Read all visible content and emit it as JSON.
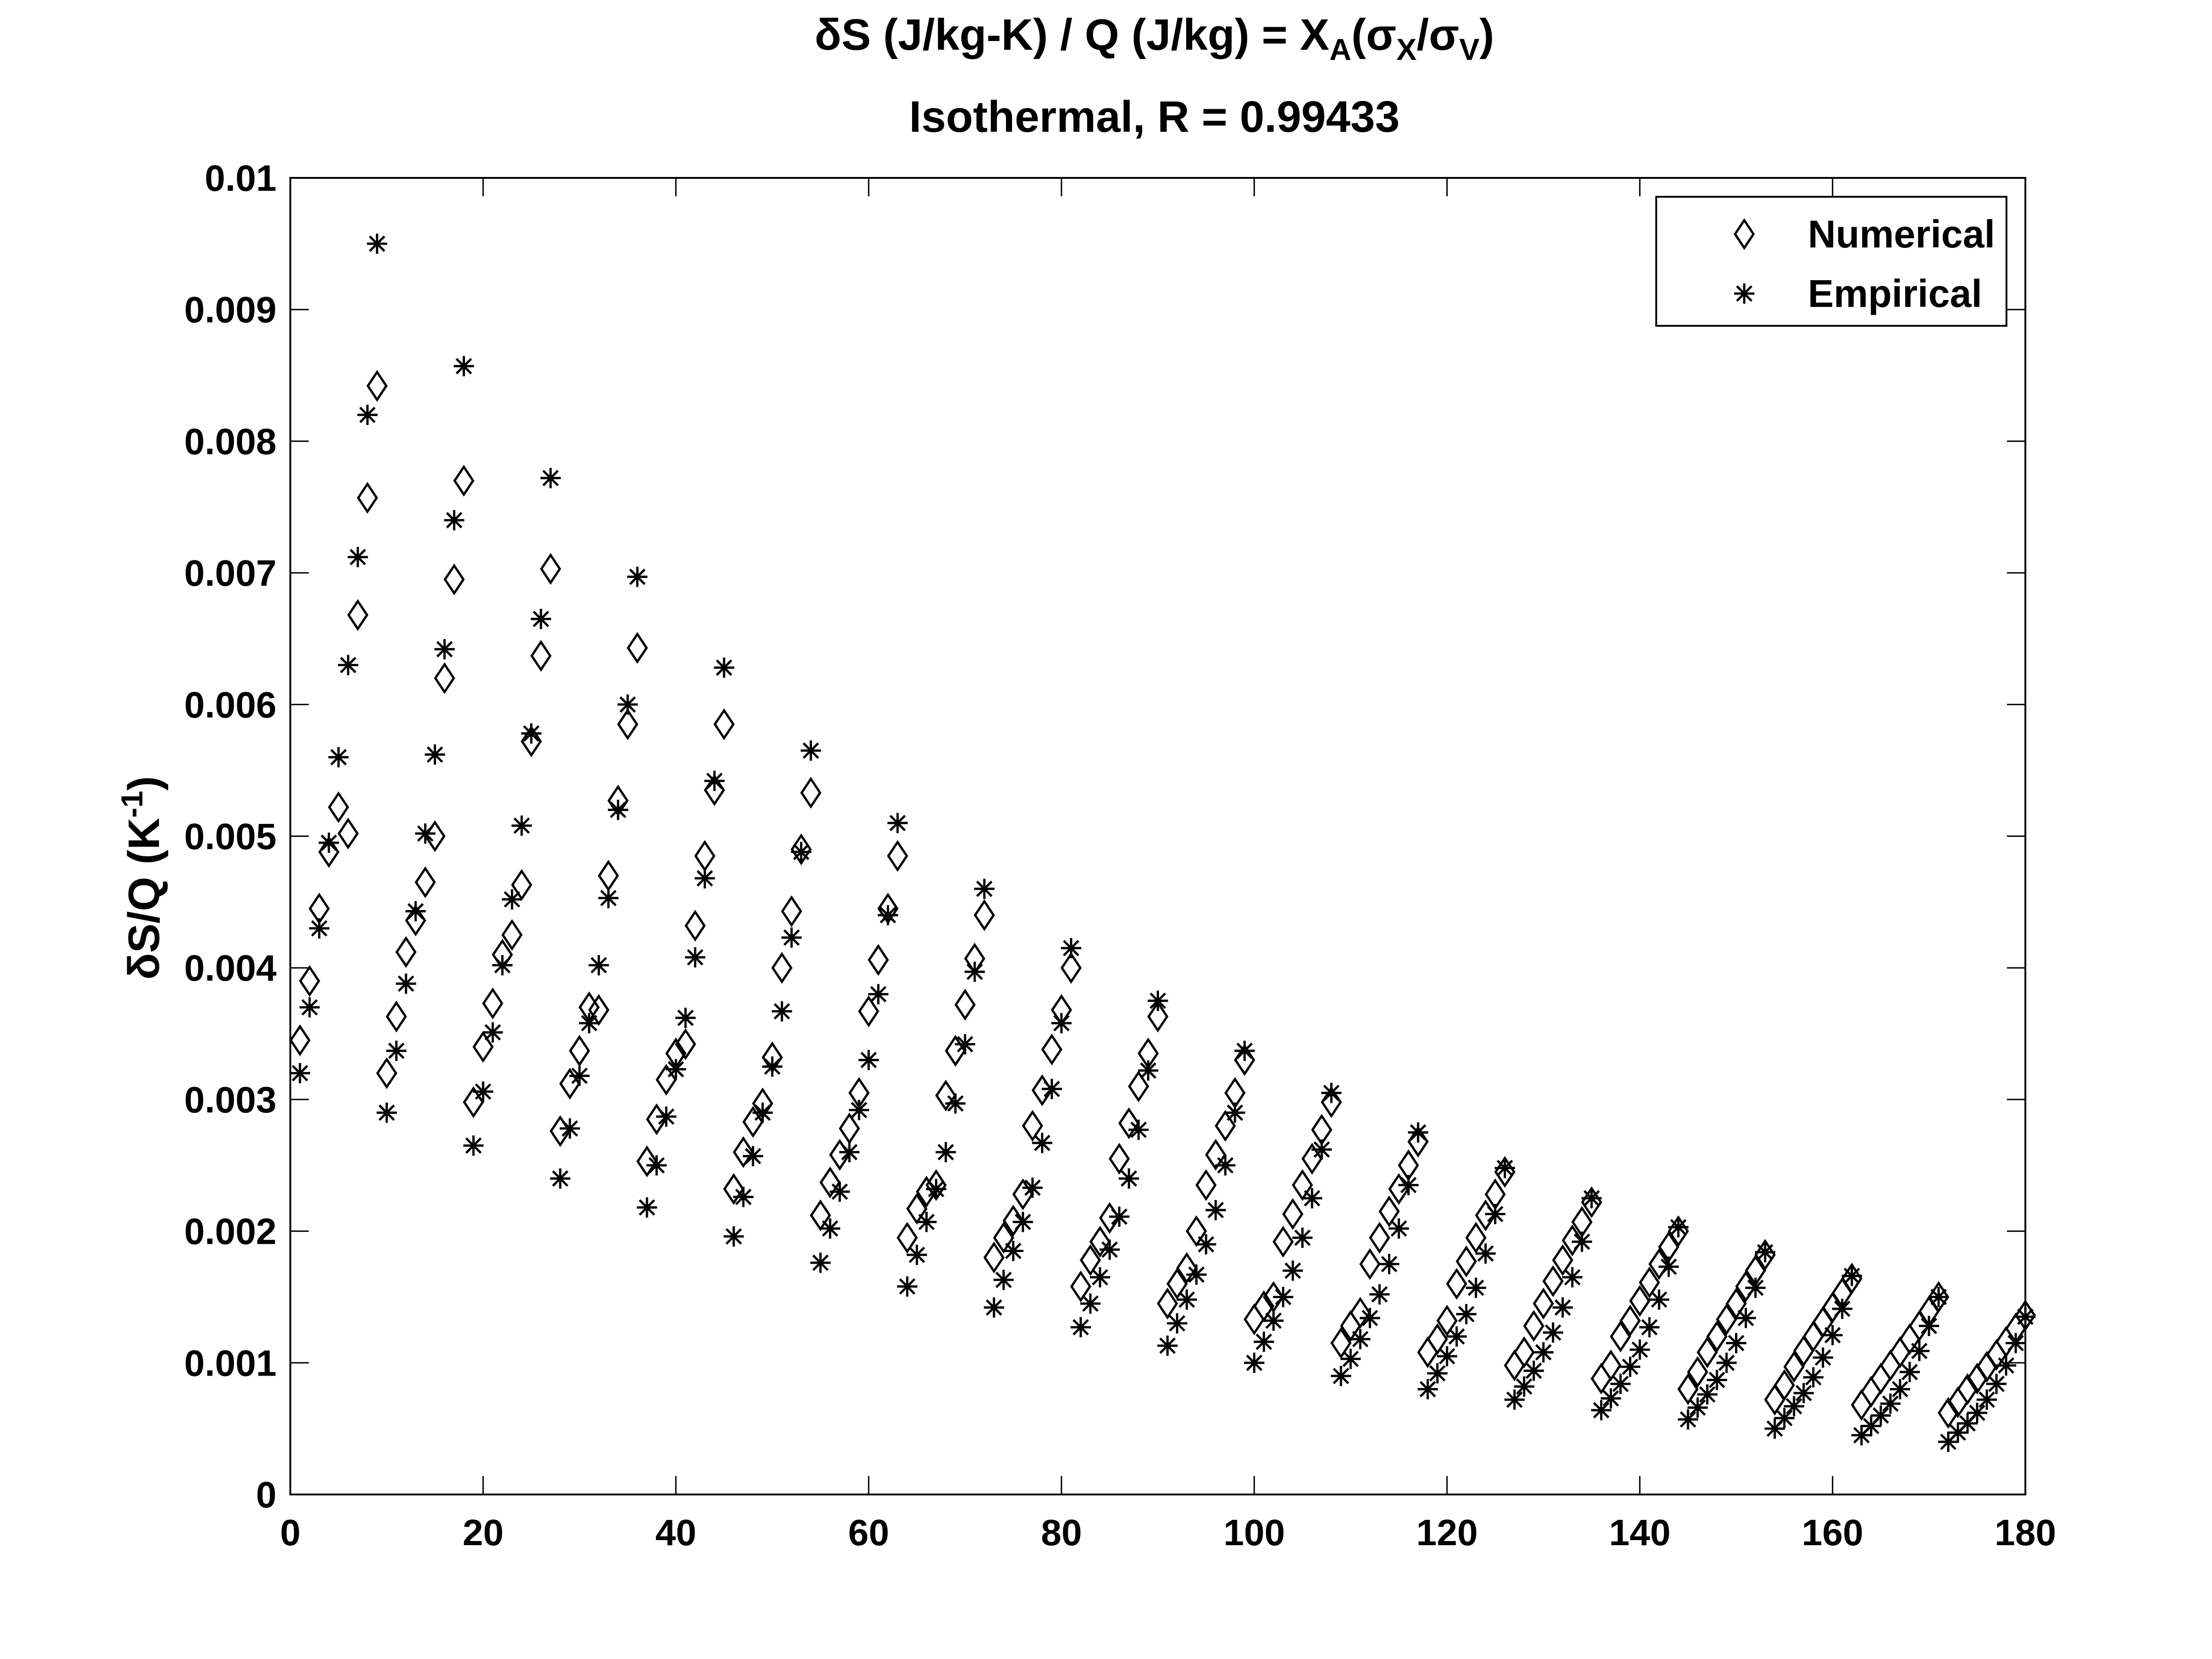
{
  "chart_data": {
    "type": "scatter",
    "title_line1": {
      "prefix": "δS (J/kg-K) / Q (J/kg) = X",
      "sub_a": "A",
      "open": "(σ",
      "sub_x": "X",
      "slash": "/σ",
      "sub_v": "V",
      "close": ")"
    },
    "title_line2": "Isothermal, R = 0.99433",
    "ylabel": {
      "main": "δS/Q (K",
      "sup": "-1",
      "close": ")"
    },
    "xlabel": "",
    "xlim": [
      0,
      180
    ],
    "ylim": [
      0,
      0.01
    ],
    "xticks": [
      0,
      20,
      40,
      60,
      80,
      100,
      120,
      140,
      160,
      180
    ],
    "yticks": [
      0,
      0.001,
      0.002,
      0.003,
      0.004,
      0.005,
      0.006,
      0.007,
      0.008,
      0.009,
      0.01
    ],
    "ytick_labels": [
      "0",
      "0.001",
      "0.002",
      "0.003",
      "0.004",
      "0.005",
      "0.006",
      "0.007",
      "0.008",
      "0.009",
      "0.01"
    ],
    "xtick_labels": [
      "0",
      "20",
      "40",
      "60",
      "80",
      "100",
      "120",
      "140",
      "160",
      "180"
    ],
    "legend_position": "top-right",
    "grid": false,
    "series": [
      {
        "name": "Numerical",
        "marker": "diamond",
        "groups": [
          {
            "x": [
              1,
              2,
              3,
              4,
              5,
              6,
              7,
              8,
              9
            ],
            "y": [
              0.00345,
              0.0039,
              0.00445,
              0.00488,
              0.00522,
              0.00502,
              0.00668,
              0.00757,
              0.00842
            ]
          },
          {
            "x": [
              10,
              11,
              12,
              13,
              14,
              15,
              16,
              17,
              18
            ],
            "y": [
              0.0032,
              0.00363,
              0.00412,
              0.00436,
              0.00465,
              0.005,
              0.0062,
              0.00695,
              0.0077
            ]
          },
          {
            "x": [
              19,
              20,
              21,
              22,
              23,
              24,
              25,
              26,
              27
            ],
            "y": [
              0.00298,
              0.0034,
              0.00373,
              0.0041,
              0.00425,
              0.00463,
              0.00572,
              0.00637,
              0.00703
            ]
          },
          {
            "x": [
              28,
              29,
              30,
              31,
              32,
              33,
              34,
              35,
              36
            ],
            "y": [
              0.00276,
              0.00312,
              0.00337,
              0.0037,
              0.00368,
              0.0047,
              0.00527,
              0.00585,
              0.00643
            ]
          },
          {
            "x": [
              37,
              38,
              39,
              40,
              41,
              42,
              43,
              44,
              45
            ],
            "y": [
              0.00253,
              0.00285,
              0.00315,
              0.00335,
              0.00342,
              0.00432,
              0.00485,
              0.00535,
              0.00585
            ]
          },
          {
            "x": [
              46,
              47,
              48,
              49,
              50,
              51,
              52,
              53,
              54
            ],
            "y": [
              0.00232,
              0.0026,
              0.00283,
              0.00297,
              0.00332,
              0.004,
              0.00443,
              0.0049,
              0.00533
            ]
          },
          {
            "x": [
              55,
              56,
              57,
              58,
              59,
              60,
              61,
              62,
              63
            ],
            "y": [
              0.00212,
              0.00237,
              0.00258,
              0.00278,
              0.00305,
              0.00367,
              0.00406,
              0.00445,
              0.00485
            ]
          },
          {
            "x": [
              64,
              65,
              66,
              67,
              68,
              69,
              70,
              71,
              72
            ],
            "y": [
              0.00195,
              0.00217,
              0.0023,
              0.00235,
              0.00303,
              0.00337,
              0.00372,
              0.00407,
              0.0044
            ]
          },
          {
            "x": [
              73,
              74,
              75,
              76,
              77,
              78,
              79,
              80,
              81
            ],
            "y": [
              0.0018,
              0.00195,
              0.00208,
              0.00228,
              0.0028,
              0.00307,
              0.00338,
              0.00368,
              0.004
            ]
          },
          {
            "x": [
              82,
              83,
              84,
              85,
              86,
              87,
              88,
              89,
              90
            ],
            "y": [
              0.00158,
              0.00178,
              0.00192,
              0.0021,
              0.00255,
              0.00282,
              0.0031,
              0.00335,
              0.00363
            ]
          },
          {
            "x": [
              91,
              92,
              93,
              94,
              95,
              96,
              97,
              98,
              99
            ],
            "y": [
              0.00145,
              0.0016,
              0.00172,
              0.002,
              0.00235,
              0.00258,
              0.0028,
              0.00305,
              0.0033
            ]
          },
          {
            "x": [
              100,
              101,
              102,
              103,
              104,
              105,
              106,
              107,
              108
            ],
            "y": [
              0.00133,
              0.00143,
              0.0015,
              0.00192,
              0.00213,
              0.00235,
              0.00255,
              0.00277,
              0.00298
            ]
          },
          {
            "x": [
              109,
              110,
              111,
              112,
              113,
              114,
              115,
              116,
              117
            ],
            "y": [
              0.00115,
              0.00128,
              0.00138,
              0.00175,
              0.00195,
              0.00215,
              0.00232,
              0.0025,
              0.00268
            ]
          },
          {
            "x": [
              118,
              119,
              120,
              121,
              122,
              123,
              124,
              125,
              126
            ],
            "y": [
              0.00108,
              0.00118,
              0.00132,
              0.0016,
              0.00177,
              0.00195,
              0.00212,
              0.00228,
              0.00245
            ]
          },
          {
            "x": [
              127,
              128,
              129,
              130,
              131,
              132,
              133,
              134,
              135
            ],
            "y": [
              0.00098,
              0.00108,
              0.00128,
              0.00145,
              0.00162,
              0.00178,
              0.00193,
              0.00207,
              0.00222
            ]
          },
          {
            "x": [
              136,
              137,
              138,
              139,
              140,
              141,
              142,
              143,
              144
            ],
            "y": [
              0.00088,
              0.00098,
              0.0012,
              0.00132,
              0.00147,
              0.00161,
              0.00175,
              0.00188,
              0.002
            ]
          },
          {
            "x": [
              145,
              146,
              147,
              148,
              149,
              150,
              151,
              152,
              153
            ],
            "y": [
              0.0008,
              0.00093,
              0.00108,
              0.0012,
              0.00133,
              0.00145,
              0.00158,
              0.0017,
              0.00182
            ]
          },
          {
            "x": [
              154,
              155,
              156,
              157,
              158,
              159,
              160,
              161,
              162
            ],
            "y": [
              0.00072,
              0.00083,
              0.00097,
              0.00109,
              0.0012,
              0.00131,
              0.00142,
              0.00153,
              0.00164
            ]
          },
          {
            "x": [
              163,
              164,
              165,
              166,
              167,
              168,
              169,
              170,
              171
            ],
            "y": [
              0.00068,
              0.00078,
              0.00088,
              0.00098,
              0.00108,
              0.00118,
              0.00128,
              0.00139,
              0.0015
            ]
          },
          {
            "x": [
              172,
              173,
              174,
              175,
              176,
              177,
              178,
              179,
              180
            ],
            "y": [
              0.00062,
              0.0007,
              0.0008,
              0.00088,
              0.00097,
              0.00106,
              0.00116,
              0.00126,
              0.00136
            ]
          }
        ]
      },
      {
        "name": "Empirical",
        "marker": "asterisk",
        "groups": [
          {
            "x": [
              1,
              2,
              3,
              4,
              5,
              6,
              7,
              8,
              9
            ],
            "y": [
              0.0032,
              0.0037,
              0.0043,
              0.00495,
              0.0056,
              0.0063,
              0.00712,
              0.0082,
              0.0095
            ]
          },
          {
            "x": [
              10,
              11,
              12,
              13,
              14,
              15,
              16,
              17,
              18
            ],
            "y": [
              0.0029,
              0.00337,
              0.00388,
              0.00443,
              0.00502,
              0.00562,
              0.00642,
              0.0074,
              0.00857
            ]
          },
          {
            "x": [
              19,
              20,
              21,
              22,
              23,
              24,
              25,
              26,
              27
            ],
            "y": [
              0.00265,
              0.00306,
              0.00351,
              0.00402,
              0.00452,
              0.00508,
              0.00578,
              0.00665,
              0.00772
            ]
          },
          {
            "x": [
              28,
              29,
              30,
              31,
              32,
              33,
              34,
              35,
              36
            ],
            "y": [
              0.0024,
              0.00278,
              0.00318,
              0.00358,
              0.00402,
              0.00453,
              0.0052,
              0.006,
              0.00697
            ]
          },
          {
            "x": [
              37,
              38,
              39,
              40,
              41,
              42,
              43,
              44,
              45
            ],
            "y": [
              0.00218,
              0.0025,
              0.00287,
              0.00323,
              0.00362,
              0.00408,
              0.00468,
              0.00542,
              0.00628
            ]
          },
          {
            "x": [
              46,
              47,
              48,
              49,
              50,
              51,
              52,
              53,
              54
            ],
            "y": [
              0.00196,
              0.00226,
              0.00257,
              0.0029,
              0.00325,
              0.00367,
              0.00423,
              0.00488,
              0.00565
            ]
          },
          {
            "x": [
              55,
              56,
              57,
              58,
              59,
              60,
              61,
              62,
              63
            ],
            "y": [
              0.00176,
              0.00202,
              0.0023,
              0.0026,
              0.00292,
              0.0033,
              0.0038,
              0.0044,
              0.0051
            ]
          },
          {
            "x": [
              64,
              65,
              66,
              67,
              68,
              69,
              70,
              71,
              72
            ],
            "y": [
              0.00158,
              0.00182,
              0.00207,
              0.00232,
              0.0026,
              0.00297,
              0.00342,
              0.00397,
              0.0046
            ]
          },
          {
            "x": [
              73,
              74,
              75,
              76,
              77,
              78,
              79,
              80,
              81
            ],
            "y": [
              0.00142,
              0.00163,
              0.00185,
              0.00207,
              0.00233,
              0.00267,
              0.00308,
              0.00358,
              0.00415
            ]
          },
          {
            "x": [
              82,
              83,
              84,
              85,
              86,
              87,
              88,
              89,
              90
            ],
            "y": [
              0.00127,
              0.00145,
              0.00165,
              0.00186,
              0.00211,
              0.0024,
              0.00277,
              0.00322,
              0.00375
            ]
          },
          {
            "x": [
              91,
              92,
              93,
              94,
              95,
              96,
              97,
              98,
              99
            ],
            "y": [
              0.00113,
              0.0013,
              0.00148,
              0.00167,
              0.0019,
              0.00216,
              0.0025,
              0.0029,
              0.00337
            ]
          },
          {
            "x": [
              100,
              101,
              102,
              103,
              104,
              105,
              106,
              107,
              108
            ],
            "y": [
              0.001,
              0.00116,
              0.00132,
              0.0015,
              0.0017,
              0.00195,
              0.00225,
              0.00262,
              0.00305
            ]
          },
          {
            "x": [
              109,
              110,
              111,
              112,
              113,
              114,
              115,
              116,
              117
            ],
            "y": [
              0.0009,
              0.00103,
              0.00118,
              0.00134,
              0.00152,
              0.00175,
              0.00202,
              0.00235,
              0.00275
            ]
          },
          {
            "x": [
              118,
              119,
              120,
              121,
              122,
              123,
              124,
              125,
              126
            ],
            "y": [
              0.0008,
              0.00092,
              0.00105,
              0.0012,
              0.00137,
              0.00157,
              0.00183,
              0.00213,
              0.00248
            ]
          },
          {
            "x": [
              127,
              128,
              129,
              130,
              131,
              132,
              133,
              134,
              135
            ],
            "y": [
              0.00072,
              0.00082,
              0.00094,
              0.00108,
              0.00123,
              0.00142,
              0.00165,
              0.00192,
              0.00225
            ]
          },
          {
            "x": [
              136,
              137,
              138,
              139,
              140,
              141,
              142,
              143,
              144
            ],
            "y": [
              0.00064,
              0.00073,
              0.00084,
              0.00097,
              0.0011,
              0.00127,
              0.00148,
              0.00173,
              0.00203
            ]
          },
          {
            "x": [
              145,
              146,
              147,
              148,
              149,
              150,
              151,
              152,
              153
            ],
            "y": [
              0.00057,
              0.00066,
              0.00076,
              0.00087,
              0.001,
              0.00115,
              0.00134,
              0.00157,
              0.00184
            ]
          },
          {
            "x": [
              154,
              155,
              156,
              157,
              158,
              159,
              160,
              161,
              162
            ],
            "y": [
              0.0005,
              0.00058,
              0.00067,
              0.00077,
              0.00089,
              0.00104,
              0.00121,
              0.00141,
              0.00166
            ]
          },
          {
            "x": [
              163,
              164,
              165,
              166,
              167,
              168,
              169,
              170,
              171
            ],
            "y": [
              0.00045,
              0.00052,
              0.0006,
              0.00069,
              0.0008,
              0.00093,
              0.00109,
              0.00128,
              0.0015
            ]
          },
          {
            "x": [
              172,
              173,
              174,
              175,
              176,
              177,
              178,
              179,
              180
            ],
            "y": [
              0.0004,
              0.00047,
              0.00054,
              0.00062,
              0.00072,
              0.00084,
              0.00098,
              0.00115,
              0.00135
            ]
          }
        ]
      }
    ]
  }
}
